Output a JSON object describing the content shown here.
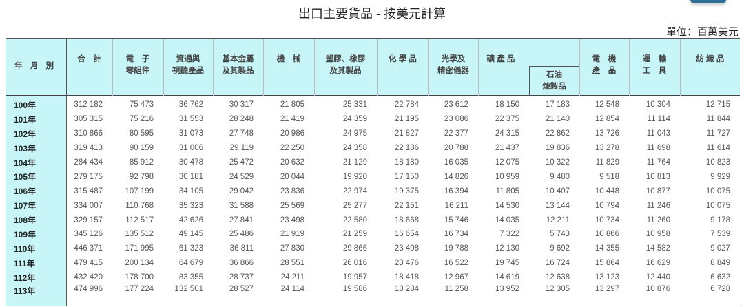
{
  "title": "出口主要貨品 - 按美元計算",
  "unit": "單位：百萬美元",
  "headers": {
    "year": "年 月 別",
    "total": "合　計",
    "electronic": "電　子\n零組件",
    "ict": "資通與\n視聽產品",
    "metal": "基本金屬\n及其製品",
    "machinery": "機　械",
    "plastics": "塑膠、橡膠\n及其製品",
    "chemicals": "化 學 品",
    "optical": "光學及\n精密儀器",
    "mineral": "礦 產 品",
    "oil": "石油\n煉製品",
    "electrical": "電　機\n產　品",
    "transport": "運　輸\n工　具",
    "textiles": "紡 織 品"
  },
  "rows": [
    [
      "100年",
      "312 182",
      "75 473",
      "36 762",
      "30 317",
      "21 805",
      "25 331",
      "22 784",
      "23 612",
      "18 150",
      "17 183",
      "12 548",
      "10 304",
      "12 715"
    ],
    [
      "101年",
      "305 315",
      "75 216",
      "31 553",
      "28 248",
      "21 419",
      "24 359",
      "21 195",
      "23 086",
      "22 375",
      "21 140",
      "12 854",
      "11 114",
      "11 844"
    ],
    [
      "102年",
      "310 866",
      "80 595",
      "31 073",
      "27 748",
      "20 986",
      "24 975",
      "21 827",
      "22 377",
      "24 315",
      "22 862",
      "13 726",
      "11 043",
      "11 727"
    ],
    [
      "103年",
      "319 413",
      "90 159",
      "31 006",
      "29 119",
      "22 250",
      "24 358",
      "22 186",
      "20 788",
      "21 437",
      "19 836",
      "13 278",
      "11 698",
      "11 614"
    ],
    [
      "104年",
      "284 434",
      "85 912",
      "30 478",
      "25 472",
      "20 632",
      "21 129",
      "18 180",
      "16 035",
      "12 075",
      "10 322",
      "11 829",
      "11 764",
      "10 823"
    ],
    [
      "105年",
      "279 175",
      "92 798",
      "30 181",
      "24 529",
      "20 044",
      "19 920",
      "17 150",
      "14 826",
      "10 959",
      "9 480",
      "9 518",
      "10 813",
      "9 929"
    ],
    [
      "106年",
      "315 487",
      "107 199",
      "34 105",
      "29 042",
      "23 836",
      "22 974",
      "19 375",
      "16 394",
      "11 805",
      "10 407",
      "10 448",
      "10 877",
      "10 075"
    ],
    [
      "107年",
      "334 007",
      "110 768",
      "35 323",
      "31 588",
      "25 569",
      "25 277",
      "22 151",
      "16 211",
      "14 530",
      "13 144",
      "10 794",
      "11 246",
      "10 075"
    ],
    [
      "108年",
      "329 157",
      "112 517",
      "42 626",
      "27 841",
      "23 498",
      "22 580",
      "18 668",
      "15 746",
      "14 035",
      "12 211",
      "10 734",
      "11 260",
      "9 178"
    ],
    [
      "109年",
      "345 126",
      "135 512",
      "49 145",
      "25 486",
      "21 919",
      "21 259",
      "16 654",
      "16 734",
      "7 322",
      "5 743",
      "10 866",
      "10 958",
      "7 539"
    ],
    [
      "110年",
      "446 371",
      "171 995",
      "61 323",
      "36 811",
      "27 830",
      "29 866",
      "23 408",
      "19 788",
      "12 130",
      "9 692",
      "14 355",
      "14 582",
      "9 027"
    ],
    [
      "111年",
      "479 415",
      "200 134",
      "64 679",
      "36 866",
      "28 551",
      "26 016",
      "23 476",
      "16 522",
      "19 745",
      "16 724",
      "15 864",
      "16 629",
      "8 849"
    ],
    [
      "112年",
      "432 420",
      "178 700",
      "83 355",
      "28 737",
      "24 211",
      "19 957",
      "18 418",
      "12 967",
      "14 619",
      "12 638",
      "13 123",
      "12 440",
      "6 632"
    ],
    [
      "113年",
      "474 996",
      "177 224",
      "132 501",
      "28 527",
      "24 114",
      "19 586",
      "18 284",
      "11 258",
      "13 952",
      "12 305",
      "13 297",
      "10 876",
      "6 728"
    ]
  ]
}
